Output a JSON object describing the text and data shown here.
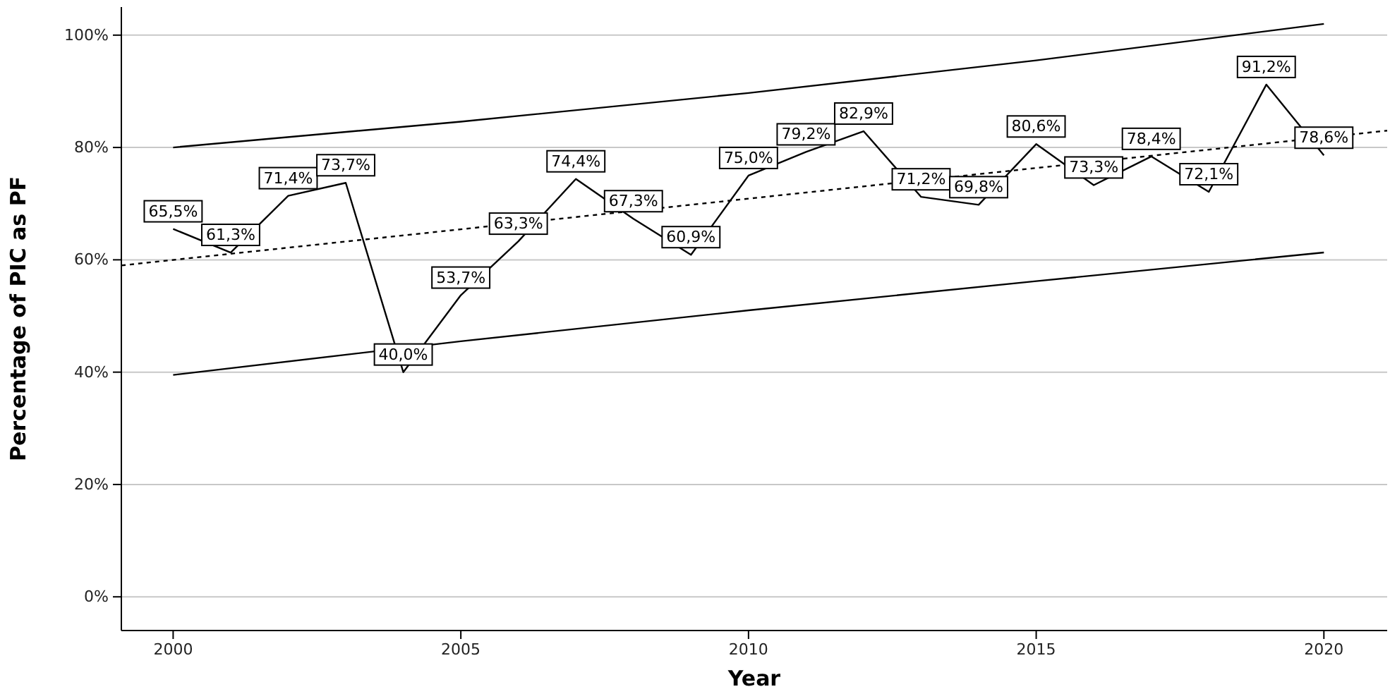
{
  "chart_data": {
    "type": "line",
    "xlabel": "Year",
    "ylabel": "Percentage of PIC as PF",
    "x": [
      2000,
      2001,
      2002,
      2003,
      2004,
      2005,
      2006,
      2007,
      2008,
      2009,
      2010,
      2011,
      2012,
      2013,
      2014,
      2015,
      2016,
      2017,
      2018,
      2019,
      2020
    ],
    "series": [
      {
        "color": "#000000",
        "line_style": "solid",
        "values": [
          65.5,
          61.3,
          71.4,
          73.7,
          40.0,
          53.7,
          63.3,
          74.4,
          67.3,
          60.9,
          75.0,
          79.2,
          82.9,
          71.2,
          69.8,
          80.6,
          73.3,
          78.4,
          72.1,
          91.2,
          78.6
        ],
        "value_labels": [
          "65,5%",
          "61,3%",
          "71,4%",
          "73,7%",
          "40,0%",
          "53,7%",
          "63,3%",
          "74,4%",
          "67,3%",
          "60,9%",
          "75,0%",
          "79,2%",
          "82,9%",
          "71,2%",
          "69,8%",
          "80,6%",
          "73,3%",
          "78,4%",
          "72,1%",
          "91,2%",
          "78,6%"
        ]
      },
      {
        "color": "#000000",
        "line_style": "dashed",
        "x": [
          1999.1,
          2021.1
        ],
        "values": [
          59,
          83
        ]
      },
      {
        "color": "#000000",
        "line_style": "solid",
        "x": [
          2000,
          2005,
          2010,
          2015,
          2020
        ],
        "values": [
          80,
          84.6,
          89.7,
          95.5,
          102
        ]
      },
      {
        "color": "#000000",
        "line_style": "solid",
        "x": [
          2000,
          2005,
          2010,
          2015,
          2020
        ],
        "values": [
          39.5,
          45.5,
          51,
          56.2,
          61.3
        ]
      }
    ],
    "xlim": [
      1999.1,
      2021.1
    ],
    "xticks": [
      2000,
      2005,
      2010,
      2015,
      2020
    ],
    "ylim": [
      -6,
      105
    ],
    "yticks": [
      {
        "value": 0,
        "label": "0%"
      },
      {
        "value": 20,
        "label": "20%"
      },
      {
        "value": 40,
        "label": "40%"
      },
      {
        "value": 60,
        "label": "60%"
      },
      {
        "value": 80,
        "label": "80%"
      },
      {
        "value": 100,
        "label": "100%"
      }
    ],
    "grid": "y"
  }
}
